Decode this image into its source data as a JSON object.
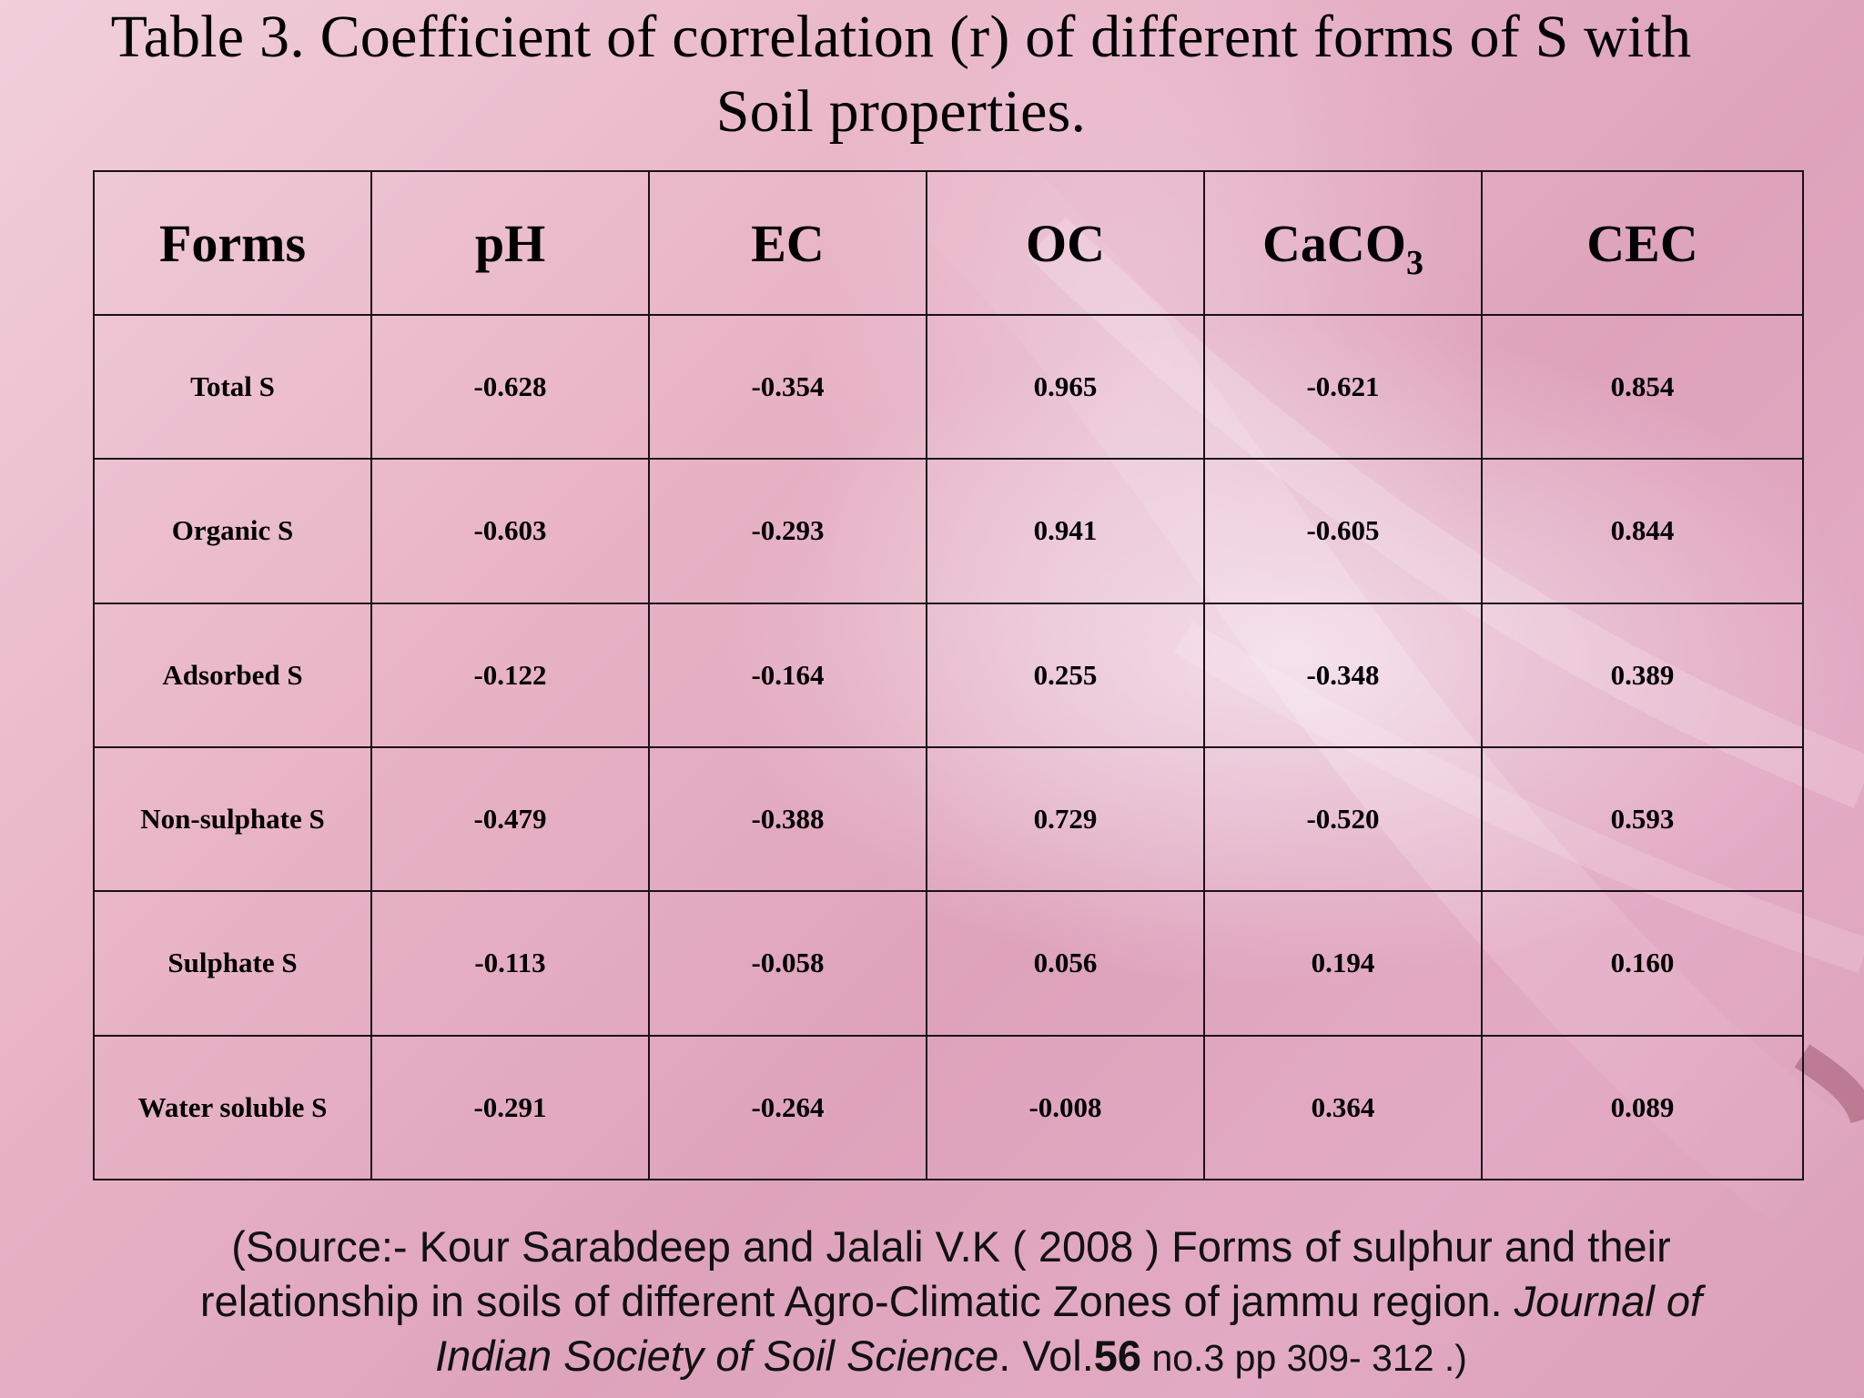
{
  "title": {
    "line1": "Table 3. Coefficient of correlation (r) of different forms of S with",
    "line2": "Soil properties."
  },
  "table": {
    "headers": [
      "Forms",
      "pH",
      "EC",
      "OC",
      "CaCO",
      "CEC"
    ],
    "caco3_subscript": "3",
    "rows": [
      {
        "form": "Total S",
        "values": [
          "-0.628",
          "-0.354",
          "0.965",
          "-0.621",
          "0.854"
        ]
      },
      {
        "form": "Organic S",
        "values": [
          "-0.603",
          "-0.293",
          "0.941",
          "-0.605",
          "0.844"
        ]
      },
      {
        "form": "Adsorbed S",
        "values": [
          "-0.122",
          "-0.164",
          "0.255",
          "-0.348",
          "0.389"
        ]
      },
      {
        "form": "Non-sulphate S",
        "values": [
          "-0.479",
          "-0.388",
          "0.729",
          "-0.520",
          "0.593"
        ]
      },
      {
        "form": "Sulphate S",
        "values": [
          "-0.113",
          "-0.058",
          "0.056",
          "0.194",
          "0.160"
        ]
      },
      {
        "form": "Water soluble S",
        "values": [
          "-0.291",
          "-0.264",
          "-0.008",
          "0.364",
          "0.089"
        ]
      }
    ]
  },
  "source": {
    "line1": "(Source:-  Kour Sarabdeep and Jalali V.K  ( 2008 )  Forms of sulphur and their",
    "line2_plain": "relationship  in soils of different Agro-Climatic Zones of jammu region. ",
    "line2_italic": "Journal of",
    "line3_italic": "Indian Society of Soil Science",
    "line3_vol": ". Vol.",
    "line3_volnum": "56",
    "line3_rest": "   no.3 pp 309- 312 .)"
  },
  "colors": {
    "background_start": "#f1cfdb",
    "background_mid": "#dea3bb",
    "border": "#1a1018"
  }
}
